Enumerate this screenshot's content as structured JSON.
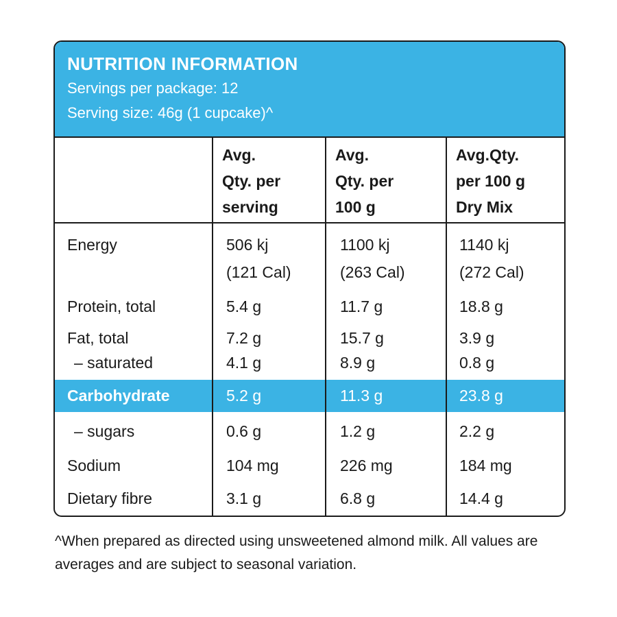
{
  "colors": {
    "accent": "#3bb3e4",
    "border": "#1a1a1a"
  },
  "header": {
    "title": "NUTRITION INFORMATION",
    "servings": "Servings per package: 12",
    "serving_size": "Serving size: 46g (1 cupcake)^"
  },
  "columns": [
    "Avg.\nQty. per\nserving",
    "Avg.\nQty. per\n100 g",
    "Avg.Qty.\nper 100 g\nDry Mix"
  ],
  "rows": [
    {
      "label": "Energy",
      "values": [
        "506 kj",
        "1100 kj",
        "1140 kj"
      ],
      "values2": [
        "(121 Cal)",
        "(263 Cal)",
        "(272 Cal)"
      ]
    },
    {
      "label": "Protein, total",
      "values": [
        "5.4 g",
        "11.7 g",
        "18.8 g"
      ]
    },
    {
      "label": "Fat, total",
      "values": [
        "7.2 g",
        "15.7 g",
        "3.9 g"
      ]
    },
    {
      "label": "–  saturated",
      "values": [
        "4.1 g",
        "8.9 g",
        "0.8 g"
      ]
    },
    {
      "label": "Carbohydrate",
      "values": [
        "5.2 g",
        "11.3 g",
        "23.8 g"
      ],
      "highlight": true
    },
    {
      "label": "–  sugars",
      "values": [
        "0.6 g",
        "1.2 g",
        "2.2 g"
      ]
    },
    {
      "label": "Sodium",
      "values": [
        "104 mg",
        "226 mg",
        "184 mg"
      ]
    },
    {
      "label": "Dietary fibre",
      "values": [
        "3.1 g",
        "6.8 g",
        "14.4 g"
      ]
    }
  ],
  "footnote": "^When prepared as directed using unsweetened almond milk. All values are averages and are subject to seasonal variation."
}
